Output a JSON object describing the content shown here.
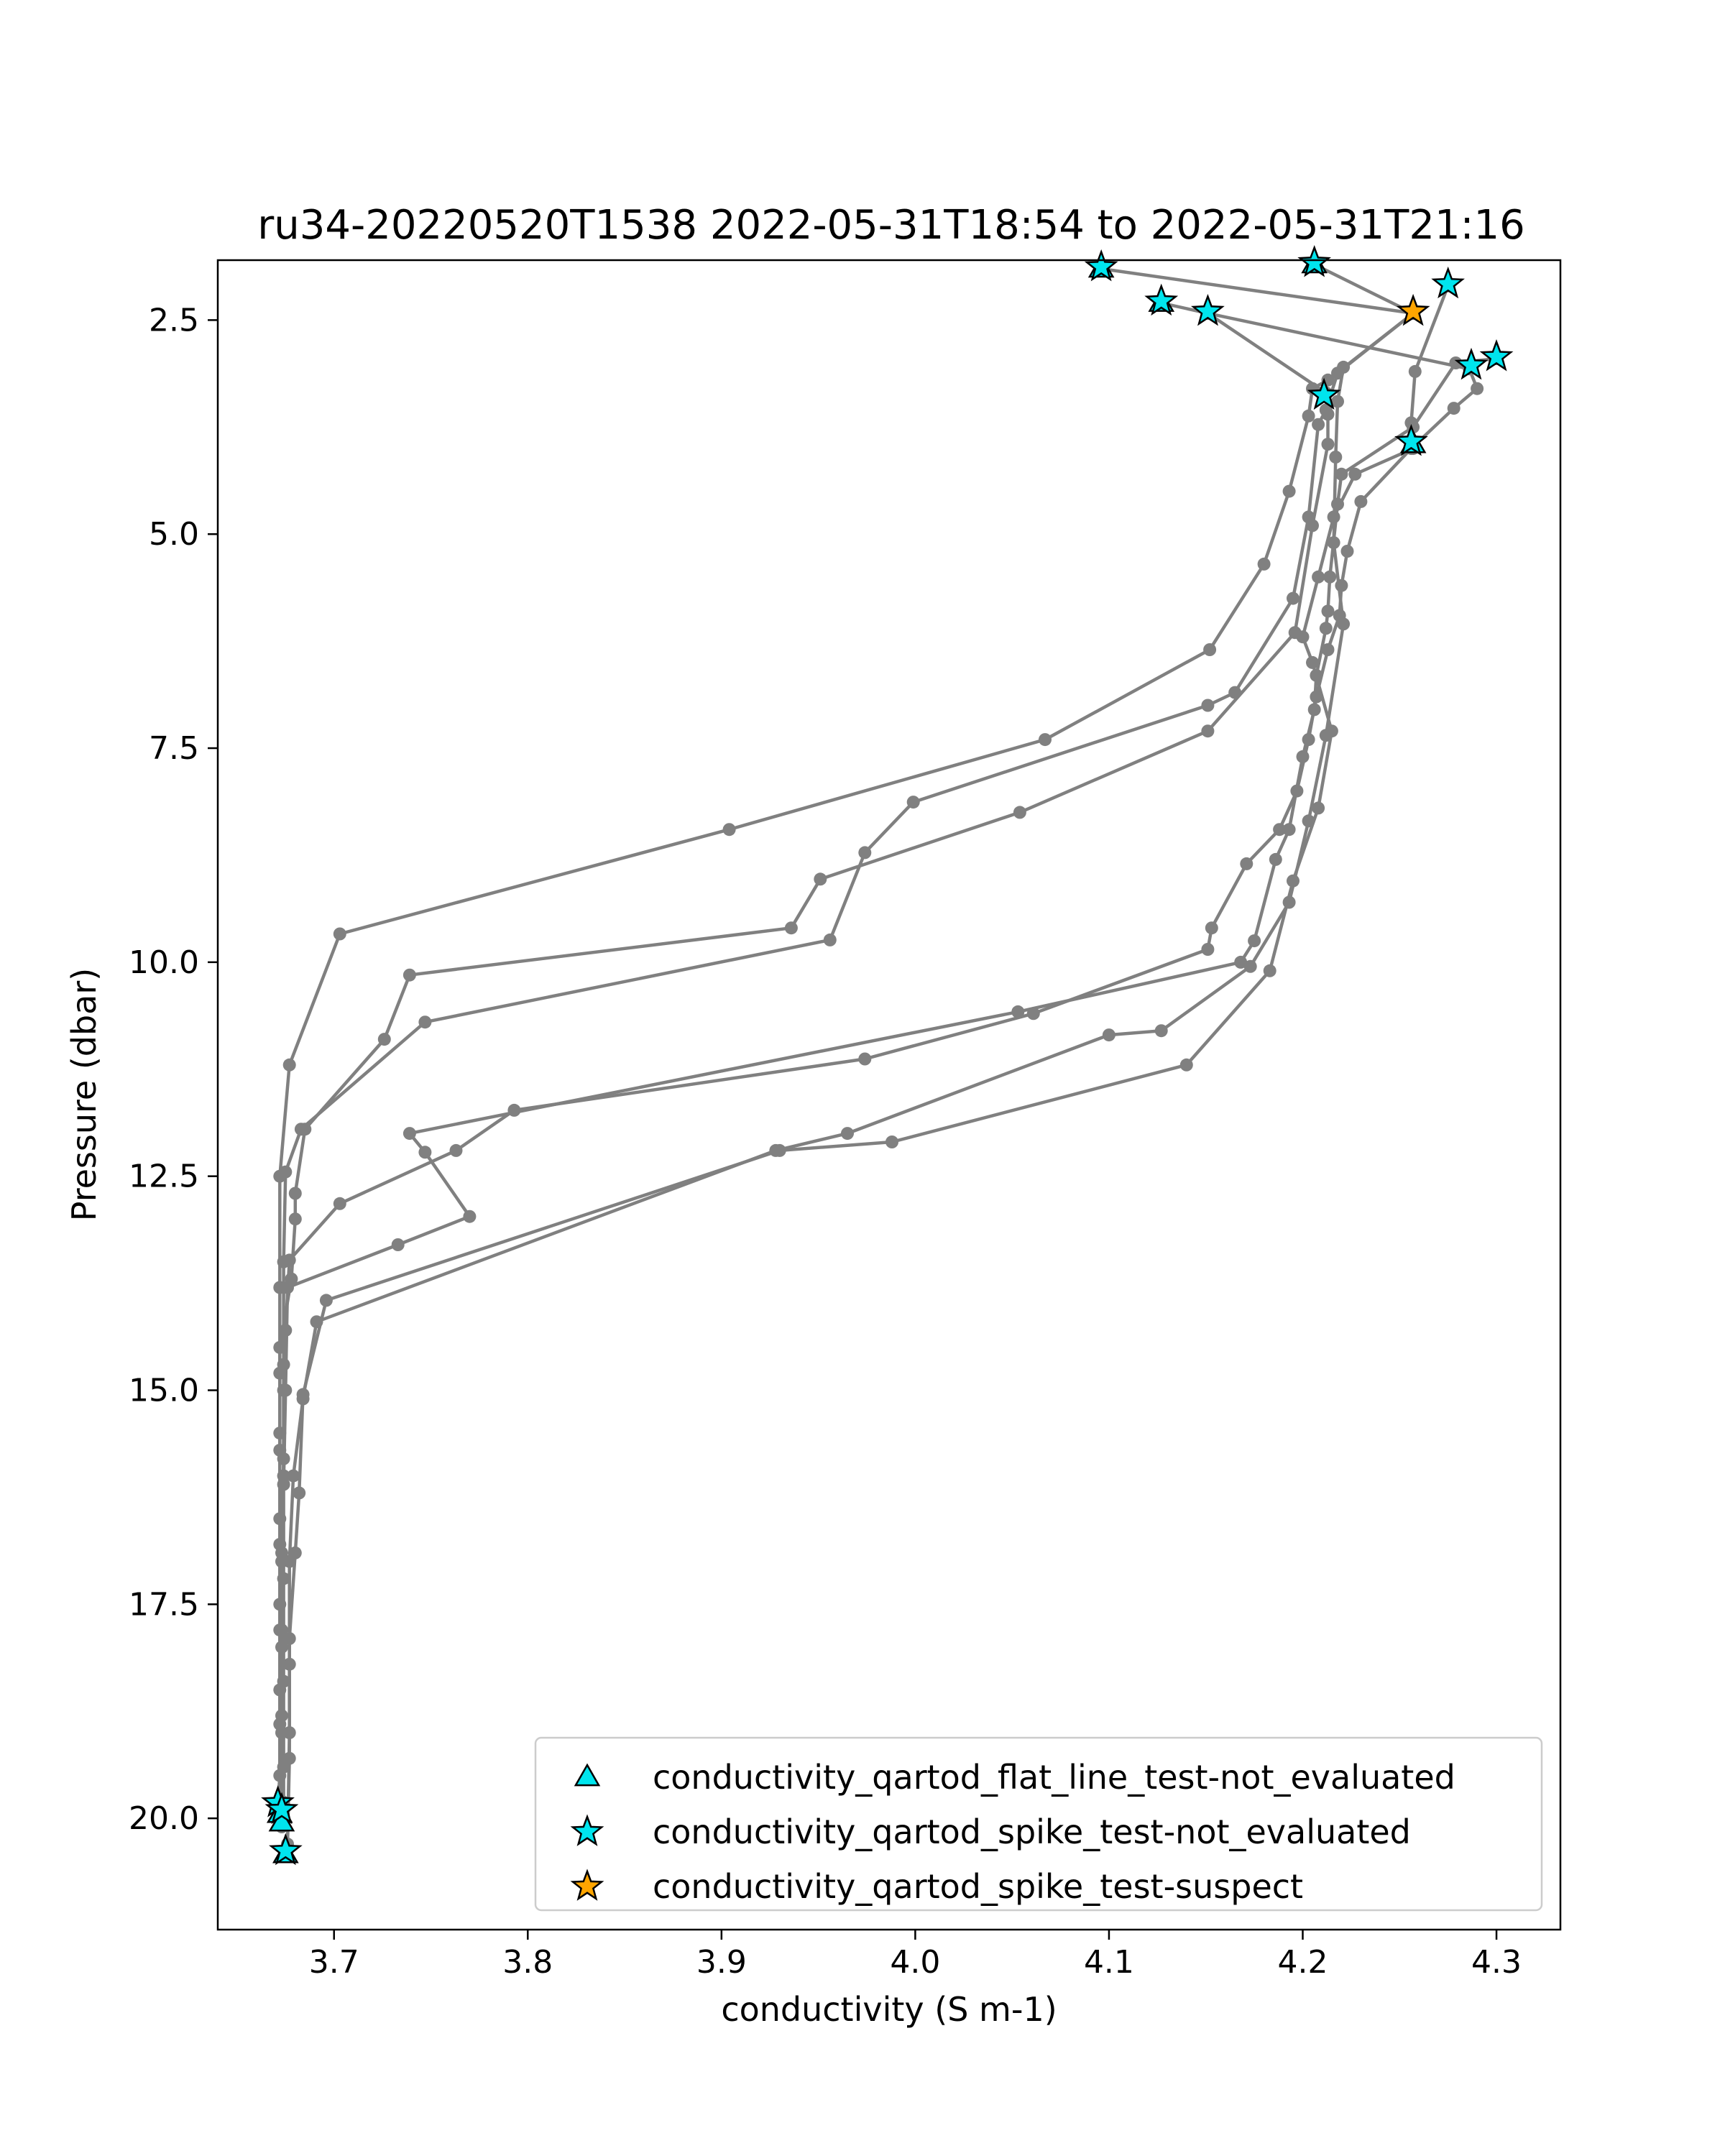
{
  "chart_data": {
    "type": "line",
    "title": "ru34-20220520T1538 2022-05-31T18:54 to 2022-05-31T21:16",
    "xlabel": "conductivity (S m-1)",
    "ylabel": "Pressure (dbar)",
    "xlim": [
      3.64,
      4.333
    ],
    "ylim": [
      21.3,
      1.8
    ],
    "y_inverted": true,
    "grid": false,
    "xticks": [
      3.7,
      3.8,
      3.9,
      4.0,
      4.1,
      4.2,
      4.3
    ],
    "xtick_labels": [
      "3.7",
      "3.8",
      "3.9",
      "4.0",
      "4.1",
      "4.2",
      "4.3"
    ],
    "yticks": [
      2.5,
      5.0,
      7.5,
      10.0,
      12.5,
      15.0,
      17.5,
      20.0
    ],
    "ytick_labels": [
      "2.5",
      "5.0",
      "7.5",
      "10.0",
      "12.5",
      "15.0",
      "17.5",
      "20.0"
    ],
    "line_color": "#808080",
    "legend": {
      "position": "lower right",
      "entries": [
        {
          "label": "conductivity_qartod_flat_line_test-not_evaluated",
          "marker": "triangle",
          "color": "#00e5ee"
        },
        {
          "label": "conductivity_qartod_spike_test-not_evaluated",
          "marker": "star",
          "color": "#00e5ee"
        },
        {
          "label": "conductivity_qartod_spike_test-suspect",
          "marker": "star",
          "color": "#ffa500"
        }
      ]
    },
    "profiles": [
      {
        "points": [
          [
            4.096,
            1.9
          ],
          [
            4.257,
            2.42
          ],
          [
            4.213,
            3.2
          ],
          [
            4.205,
            3.3
          ],
          [
            4.203,
            3.62
          ],
          [
            4.193,
            4.5
          ],
          [
            4.18,
            5.35
          ],
          [
            4.152,
            6.35
          ],
          [
            4.067,
            7.4
          ],
          [
            3.904,
            8.45
          ],
          [
            3.703,
            9.67
          ],
          [
            3.677,
            11.2
          ],
          [
            3.672,
            12.5
          ],
          [
            3.672,
            13.8
          ],
          [
            3.672,
            14.8
          ],
          [
            3.672,
            15.7
          ],
          [
            3.672,
            16.8
          ],
          [
            3.672,
            17.8
          ],
          [
            3.672,
            18.9
          ],
          [
            3.672,
            19.8
          ],
          [
            3.673,
            20.1
          ]
        ]
      },
      {
        "points": [
          [
            4.206,
            1.85
          ],
          [
            4.257,
            2.42
          ],
          [
            4.218,
            3.12
          ],
          [
            4.212,
            3.55
          ],
          [
            4.208,
            3.72
          ],
          [
            4.203,
            4.8
          ],
          [
            4.195,
            5.75
          ],
          [
            4.165,
            6.85
          ],
          [
            4.151,
            7.0
          ],
          [
            3.999,
            8.13
          ],
          [
            3.974,
            8.72
          ],
          [
            3.956,
            9.74
          ],
          [
            3.747,
            10.7
          ],
          [
            3.683,
            11.95
          ],
          [
            3.675,
            12.45
          ],
          [
            3.674,
            13.5
          ],
          [
            3.674,
            14.7
          ],
          [
            3.674,
            15.8
          ],
          [
            3.673,
            16.9
          ],
          [
            3.673,
            17.8
          ],
          [
            3.673,
            18.8
          ],
          [
            3.673,
            19.8
          ],
          [
            3.673,
            20.05
          ]
        ]
      },
      {
        "points": [
          [
            4.127,
            2.3
          ],
          [
            4.151,
            2.42
          ],
          [
            4.286,
            3.07
          ],
          [
            4.29,
            3.3
          ],
          [
            4.278,
            3.53
          ],
          [
            4.256,
            4.0
          ],
          [
            4.23,
            4.62
          ],
          [
            4.223,
            5.2
          ],
          [
            4.22,
            5.6
          ],
          [
            4.219,
            5.95
          ],
          [
            4.213,
            6.35
          ],
          [
            4.207,
            6.9
          ],
          [
            4.203,
            7.4
          ],
          [
            4.197,
            8.0
          ],
          [
            4.188,
            8.45
          ],
          [
            4.171,
            8.85
          ],
          [
            4.153,
            9.6
          ],
          [
            4.151,
            9.85
          ],
          [
            4.061,
            10.6
          ],
          [
            3.974,
            11.13
          ],
          [
            3.793,
            11.73
          ],
          [
            3.763,
            12.2
          ],
          [
            3.703,
            12.82
          ],
          [
            3.677,
            13.48
          ],
          [
            3.675,
            14.3
          ],
          [
            3.674,
            15.0
          ],
          [
            3.674,
            16.0
          ],
          [
            3.673,
            17.0
          ],
          [
            3.673,
            18.0
          ],
          [
            3.673,
            19.0
          ],
          [
            3.673,
            19.8
          ],
          [
            3.673,
            20.05
          ]
        ]
      },
      {
        "points": [
          [
            4.151,
            2.42
          ],
          [
            4.212,
            3.35
          ],
          [
            4.213,
            3.6
          ],
          [
            4.213,
            3.95
          ],
          [
            4.205,
            4.9
          ],
          [
            4.196,
            6.15
          ],
          [
            4.151,
            7.3
          ],
          [
            4.054,
            8.25
          ],
          [
            3.951,
            9.03
          ],
          [
            3.936,
            9.6
          ],
          [
            3.739,
            10.15
          ],
          [
            3.726,
            10.9
          ],
          [
            3.685,
            11.95
          ],
          [
            3.68,
            12.7
          ],
          [
            3.68,
            13.0
          ],
          [
            3.678,
            13.7
          ],
          [
            3.672,
            14.5
          ],
          [
            3.672,
            15.5
          ],
          [
            3.672,
            16.5
          ],
          [
            3.672,
            17.5
          ],
          [
            3.672,
            18.5
          ],
          [
            3.672,
            19.5
          ],
          [
            3.671,
            19.85
          ]
        ]
      },
      {
        "points": [
          [
            4.3,
            2.95
          ],
          [
            4.279,
            3.0
          ],
          [
            4.257,
            3.75
          ],
          [
            4.22,
            4.3
          ],
          [
            4.218,
            4.65
          ],
          [
            4.214,
            5.5
          ],
          [
            4.213,
            5.9
          ],
          [
            4.212,
            6.1
          ],
          [
            4.207,
            6.65
          ],
          [
            4.206,
            7.05
          ],
          [
            4.2,
            7.6
          ],
          [
            4.193,
            8.45
          ],
          [
            4.186,
            8.8
          ],
          [
            4.175,
            9.75
          ],
          [
            4.168,
            10.0
          ],
          [
            4.053,
            10.58
          ],
          [
            3.739,
            12.0
          ],
          [
            3.747,
            12.22
          ],
          [
            3.77,
            12.97
          ],
          [
            3.733,
            13.3
          ],
          [
            3.676,
            13.8
          ],
          [
            3.675,
            15.0
          ],
          [
            3.674,
            16.1
          ],
          [
            3.674,
            17.2
          ],
          [
            3.674,
            18.4
          ],
          [
            3.674,
            19.4
          ],
          [
            3.674,
            20.0
          ]
        ]
      },
      {
        "points": [
          [
            4.275,
            2.1
          ],
          [
            4.258,
            3.1
          ],
          [
            4.256,
            3.7
          ],
          [
            4.257,
            4.0
          ],
          [
            4.227,
            4.3
          ],
          [
            4.216,
            4.8
          ],
          [
            4.208,
            5.5
          ],
          [
            4.2,
            6.2
          ],
          [
            4.205,
            6.5
          ],
          [
            4.215,
            7.3
          ],
          [
            4.208,
            8.2
          ],
          [
            4.195,
            9.05
          ],
          [
            4.183,
            10.1
          ],
          [
            4.14,
            11.2
          ],
          [
            3.988,
            12.1
          ],
          [
            3.93,
            12.2
          ],
          [
            3.696,
            13.95
          ],
          [
            3.684,
            15.05
          ],
          [
            3.682,
            16.2
          ],
          [
            3.68,
            16.9
          ],
          [
            3.677,
            17.9
          ],
          [
            3.677,
            19.0
          ],
          [
            3.676,
            20.35
          ],
          [
            3.675,
            20.4
          ]
        ]
      },
      {
        "points": [
          [
            4.221,
            3.05
          ],
          [
            4.218,
            3.45
          ],
          [
            4.217,
            4.1
          ],
          [
            4.216,
            5.1
          ],
          [
            4.221,
            6.05
          ],
          [
            4.212,
            7.35
          ],
          [
            4.203,
            8.35
          ],
          [
            4.193,
            9.3
          ],
          [
            4.173,
            10.05
          ],
          [
            4.127,
            10.8
          ],
          [
            4.1,
            10.85
          ],
          [
            3.965,
            12.0
          ],
          [
            3.928,
            12.2
          ],
          [
            3.691,
            14.2
          ],
          [
            3.684,
            15.1
          ],
          [
            3.679,
            16.0
          ],
          [
            3.677,
            17.0
          ],
          [
            3.677,
            18.2
          ],
          [
            3.677,
            19.3
          ],
          [
            3.676,
            20.3
          ]
        ]
      }
    ],
    "flag_markers": [
      {
        "x": 4.096,
        "y": 1.9,
        "flag": "flat_line-not_evaluated"
      },
      {
        "x": 4.206,
        "y": 1.85,
        "flag": "flat_line-not_evaluated"
      },
      {
        "x": 4.127,
        "y": 2.3,
        "flag": "flat_line-not_evaluated"
      },
      {
        "x": 4.257,
        "y": 3.95,
        "flag": "flat_line-not_evaluated"
      },
      {
        "x": 3.672,
        "y": 19.95,
        "flag": "flat_line-not_evaluated"
      },
      {
        "x": 3.673,
        "y": 20.05,
        "flag": "flat_line-not_evaluated"
      },
      {
        "x": 3.675,
        "y": 20.42,
        "flag": "flat_line-not_evaluated"
      },
      {
        "x": 4.096,
        "y": 1.88,
        "flag": "spike-not_evaluated"
      },
      {
        "x": 4.206,
        "y": 1.83,
        "flag": "spike-not_evaluated"
      },
      {
        "x": 4.275,
        "y": 2.08,
        "flag": "spike-not_evaluated"
      },
      {
        "x": 4.127,
        "y": 2.28,
        "flag": "spike-not_evaluated"
      },
      {
        "x": 4.151,
        "y": 2.4,
        "flag": "spike-not_evaluated"
      },
      {
        "x": 4.3,
        "y": 2.93,
        "flag": "spike-not_evaluated"
      },
      {
        "x": 4.287,
        "y": 3.03,
        "flag": "spike-not_evaluated"
      },
      {
        "x": 4.211,
        "y": 3.38,
        "flag": "spike-not_evaluated"
      },
      {
        "x": 4.256,
        "y": 3.92,
        "flag": "spike-not_evaluated"
      },
      {
        "x": 3.671,
        "y": 19.82,
        "flag": "spike-not_evaluated"
      },
      {
        "x": 3.673,
        "y": 19.9,
        "flag": "spike-not_evaluated"
      },
      {
        "x": 3.675,
        "y": 20.38,
        "flag": "spike-not_evaluated"
      },
      {
        "x": 4.257,
        "y": 2.4,
        "flag": "spike-suspect"
      }
    ]
  }
}
